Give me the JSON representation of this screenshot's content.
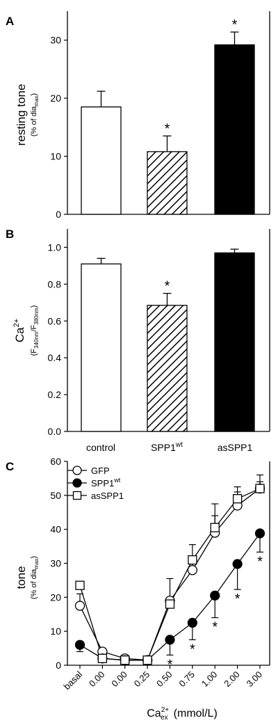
{
  "panels": {
    "a_letter": "A",
    "b_letter": "B",
    "c_letter": "C"
  },
  "chart_data": [
    {
      "type": "bar",
      "panel": "A",
      "ylabel": "resting tone",
      "ylabel_sub": "(% of dia",
      "ylabel_sub_sub": "max",
      "ylabel_sub_end": ")",
      "ylim": [
        0,
        35
      ],
      "yticks": [
        0,
        10,
        20,
        30
      ],
      "categories": [
        "control",
        "SPP1wt",
        "asSPP1"
      ],
      "values": [
        18.5,
        10.8,
        29.2
      ],
      "errors": [
        2.7,
        2.7,
        2.2
      ],
      "fills": [
        "white",
        "hatch",
        "black"
      ],
      "significance": [
        "",
        "*",
        "*"
      ]
    },
    {
      "type": "bar",
      "panel": "B",
      "ylabel": "Ca",
      "ylabel_sup": "2+",
      "ylabel_sub_a": "(F",
      "ylabel_sub_b": "340nm",
      "ylabel_sub_c": "/F",
      "ylabel_sub_d": "380nm",
      "ylabel_sub_e": ")",
      "ylim": [
        0,
        1.1
      ],
      "yticks": [
        "0.0",
        "0.2",
        "0.4",
        "0.6",
        "0.8",
        "1.0"
      ],
      "categories": [
        "control",
        "SPP1",
        "asSPP1"
      ],
      "category_sup": [
        "",
        "wt",
        ""
      ],
      "values": [
        0.91,
        0.685,
        0.97
      ],
      "errors": [
        0.03,
        0.065,
        0.02
      ],
      "fills": [
        "white",
        "hatch",
        "black"
      ],
      "significance": [
        "",
        "*",
        ""
      ]
    },
    {
      "type": "line",
      "panel": "C",
      "ylabel": "tone",
      "ylabel_sub": "(% of dia",
      "ylabel_sub_sub": "max",
      "ylabel_sub_end": ")",
      "xlabel": "Ca",
      "xlabel_sup": "2+",
      "xlabel_sub": "ex",
      "xlabel_unit": "(mmol/L)",
      "ylim": [
        0,
        60
      ],
      "yticks": [
        0,
        10,
        20,
        30,
        40,
        50,
        60
      ],
      "x": [
        "basal",
        "0.00",
        "0.00",
        "0.25",
        "0.50",
        "0.75",
        "1.00",
        "2.00",
        "3.00"
      ],
      "series": [
        {
          "name": "GFP",
          "marker": "open-circle",
          "values": [
            17.5,
            4.0,
            2.0,
            1.5,
            19.0,
            28.0,
            39.0,
            47.0,
            52.0
          ],
          "errors": [
            3.5,
            0,
            0,
            0,
            6.5,
            3.5,
            5.0,
            4.0,
            2.0
          ],
          "err_dir": [
            1,
            0,
            0,
            0,
            1,
            1,
            1,
            1,
            1
          ]
        },
        {
          "name": "SPP1",
          "name_sup": "wt",
          "marker": "filled-circle",
          "values": [
            6.0,
            2.0,
            1.5,
            1.5,
            7.5,
            12.5,
            20.5,
            29.8,
            38.8
          ],
          "errors": [
            2.0,
            0,
            0,
            0,
            4.5,
            5.0,
            6.5,
            7.5,
            5.5
          ],
          "err_dir": [
            -1,
            0,
            0,
            0,
            -1,
            -1,
            -1,
            -1,
            -1
          ]
        },
        {
          "name": "asSPP1",
          "marker": "open-square",
          "values": [
            23.5,
            2.0,
            1.5,
            1.5,
            18.0,
            31.0,
            40.5,
            49.0,
            52.0
          ],
          "errors": [
            0,
            0,
            0,
            0,
            0,
            4.5,
            7.0,
            3.5,
            4.0
          ],
          "err_dir": [
            1,
            0,
            0,
            0,
            1,
            1,
            1,
            1,
            1
          ]
        }
      ],
      "significance": [
        "",
        "",
        "",
        "",
        "*",
        "*",
        "*",
        "*",
        "*"
      ],
      "legend": "top-left"
    }
  ]
}
